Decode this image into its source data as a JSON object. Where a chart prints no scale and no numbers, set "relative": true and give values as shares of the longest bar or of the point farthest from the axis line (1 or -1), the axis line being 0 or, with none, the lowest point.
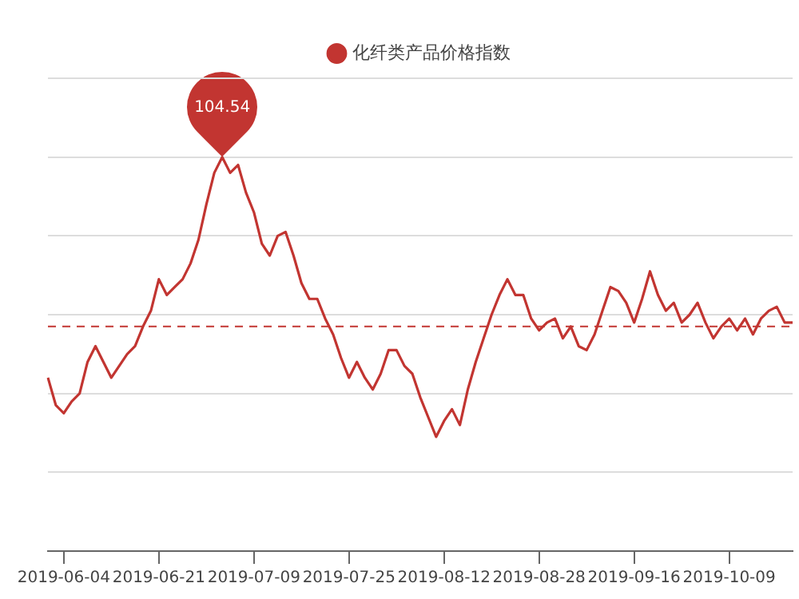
{
  "chart_data": {
    "type": "line",
    "relative": true,
    "legend": "top",
    "grid": "y",
    "marker": "none",
    "tick_labels": "x",
    "categories": [
      null,
      null,
      "2019-06-04",
      null,
      null,
      null,
      null,
      null,
      null,
      null,
      null,
      null,
      null,
      null,
      "2019-06-21",
      null,
      null,
      null,
      null,
      null,
      null,
      null,
      null,
      null,
      null,
      null,
      "2019-07-09",
      null,
      null,
      null,
      null,
      null,
      null,
      null,
      null,
      null,
      null,
      null,
      "2019-07-25",
      null,
      null,
      null,
      null,
      null,
      null,
      null,
      null,
      null,
      null,
      null,
      "2019-08-12",
      null,
      null,
      null,
      null,
      null,
      null,
      null,
      null,
      null,
      null,
      null,
      "2019-08-28",
      null,
      null,
      null,
      null,
      null,
      null,
      null,
      null,
      null,
      null,
      null,
      "2019-09-16",
      null,
      null,
      null,
      null,
      null,
      null,
      null,
      null,
      null,
      null,
      null,
      "2019-10-09",
      null,
      null,
      null,
      null,
      null,
      null,
      null,
      null
    ],
    "series": [
      {
        "name": "化纤类产品价格指数",
        "color": "#c23531",
        "values": [
          0.44,
          0.37,
          0.35,
          0.38,
          0.4,
          0.48,
          0.52,
          0.48,
          0.44,
          0.47,
          0.5,
          0.52,
          0.57,
          0.61,
          0.69,
          0.65,
          0.67,
          0.69,
          0.73,
          0.79,
          0.88,
          0.96,
          1,
          0.96,
          0.98,
          0.91,
          0.86,
          0.78,
          0.75,
          0.8,
          0.81,
          0.75,
          0.68,
          0.64,
          0.64,
          0.59,
          0.55,
          0.49,
          0.44,
          0.48,
          0.44,
          0.41,
          0.45,
          0.51,
          0.51,
          0.47,
          0.45,
          0.39,
          0.34,
          0.29,
          0.33,
          0.36,
          0.32,
          0.41,
          0.48,
          0.54,
          0.6,
          0.65,
          0.69,
          0.65,
          0.65,
          0.59,
          0.56,
          0.58,
          0.59,
          0.54,
          0.57,
          0.52,
          0.51,
          0.55,
          0.61,
          0.67,
          0.66,
          0.63,
          0.58,
          0.64,
          0.71,
          0.65,
          0.61,
          0.63,
          0.58,
          0.6,
          0.63,
          0.58,
          0.54,
          0.57,
          0.59,
          0.56,
          0.59,
          0.55,
          0.59,
          0.61,
          0.62,
          0.58,
          0.58
        ]
      }
    ],
    "annotations": [
      {
        "text": "104.54",
        "y": 1
      }
    ],
    "ref_lines": [
      {
        "axis": "y",
        "value": 0.57,
        "color": "#c23531",
        "line_style": "dashed"
      }
    ]
  }
}
